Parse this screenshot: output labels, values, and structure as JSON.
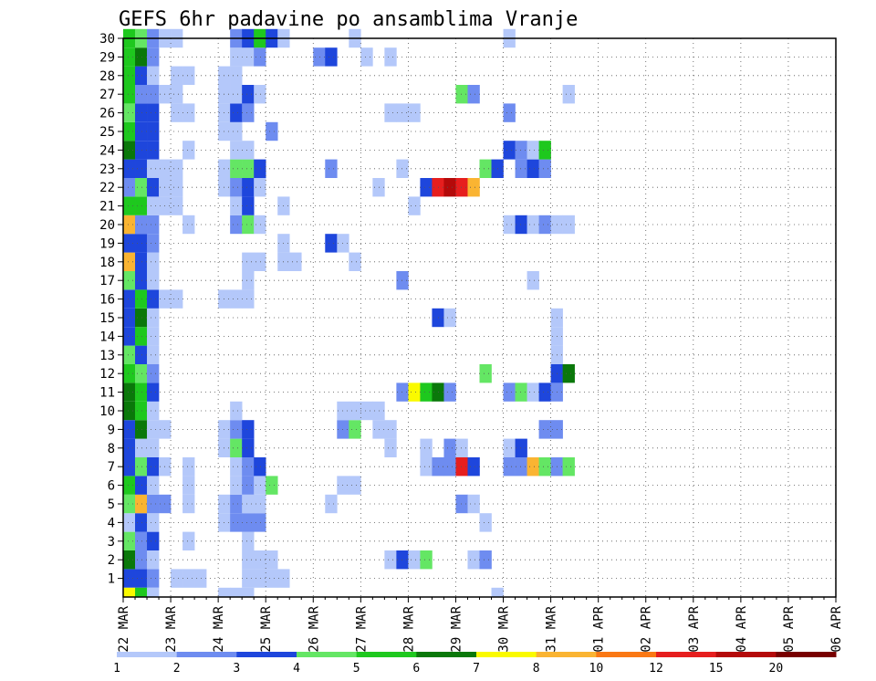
{
  "chart_data": {
    "type": "heatmap",
    "title": "GEFS 6hr padavine po ansamblima Vranje",
    "xlabel": "",
    "ylabel": "",
    "x_ticks": [
      "22 MAR",
      "23 MAR",
      "24 MAR",
      "25 MAR",
      "26 MAR",
      "27 MAR",
      "28 MAR",
      "29 MAR",
      "30 MAR",
      "31 MAR",
      "01 APR",
      "02 APR",
      "03 APR",
      "04 APR",
      "05 APR",
      "06 APR"
    ],
    "y_ticks": [
      "1",
      "2",
      "3",
      "4",
      "5",
      "6",
      "7",
      "8",
      "9",
      "10",
      "11",
      "12",
      "13",
      "14",
      "15",
      "16",
      "17",
      "18",
      "19",
      "20",
      "21",
      "22",
      "23",
      "24",
      "25",
      "26",
      "27",
      "28",
      "29",
      "30"
    ],
    "ylim": [
      0,
      30
    ],
    "legend": {
      "placement": "bottom",
      "labels": [
        "1",
        "2",
        "3",
        "4",
        "5",
        "6",
        "7",
        "8",
        "10",
        "12",
        "15",
        "20"
      ],
      "colors": [
        "#b4c8fa",
        "#6e8cf0",
        "#1e46dc",
        "#64e664",
        "#1ec81e",
        "#0a780a",
        "#fafa00",
        "#fab432",
        "#fa7814",
        "#e61e1e",
        "#b40a0a",
        "#780000"
      ]
    },
    "cell_colors": {
      "1": "#b4c8fa",
      "2": "#6e8cf0",
      "3": "#1e46dc",
      "4": "#64e664",
      "5": "#1ec81e",
      "6": "#0a780a",
      "7": "#fafa00",
      "8": "#fab432",
      "10": "#fa7814",
      "12": "#e61e1e",
      "15": "#b40a0a",
      "20": "#780000"
    },
    "time_step_hours": 6,
    "cells_note": "each cell: [member, time_step, precipitation_class]",
    "cells": [
      [
        1,
        0,
        3
      ],
      [
        1,
        1,
        3
      ],
      [
        1,
        2,
        2
      ],
      [
        1,
        4,
        1
      ],
      [
        1,
        5,
        1
      ],
      [
        1,
        6,
        1
      ],
      [
        1,
        10,
        1
      ],
      [
        1,
        11,
        1
      ],
      [
        1,
        12,
        1
      ],
      [
        1,
        13,
        1
      ],
      [
        2,
        0,
        6
      ],
      [
        2,
        1,
        2
      ],
      [
        2,
        2,
        1
      ],
      [
        2,
        10,
        1
      ],
      [
        2,
        11,
        1
      ],
      [
        2,
        12,
        1
      ],
      [
        2,
        22,
        1
      ],
      [
        2,
        23,
        3
      ],
      [
        2,
        24,
        1
      ],
      [
        2,
        25,
        4
      ],
      [
        2,
        29,
        1
      ],
      [
        2,
        30,
        2
      ],
      [
        3,
        0,
        4
      ],
      [
        3,
        1,
        2
      ],
      [
        3,
        2,
        3
      ],
      [
        3,
        5,
        1
      ],
      [
        3,
        10,
        1
      ],
      [
        4,
        0,
        1
      ],
      [
        4,
        1,
        3
      ],
      [
        4,
        2,
        1
      ],
      [
        4,
        8,
        1
      ],
      [
        4,
        9,
        2
      ],
      [
        4,
        10,
        2
      ],
      [
        4,
        11,
        2
      ],
      [
        4,
        30,
        1
      ],
      [
        5,
        0,
        4
      ],
      [
        5,
        1,
        8
      ],
      [
        5,
        2,
        2
      ],
      [
        5,
        3,
        2
      ],
      [
        5,
        5,
        1
      ],
      [
        5,
        8,
        1
      ],
      [
        5,
        9,
        2
      ],
      [
        5,
        10,
        1
      ],
      [
        5,
        11,
        1
      ],
      [
        5,
        17,
        1
      ],
      [
        5,
        28,
        2
      ],
      [
        5,
        29,
        1
      ],
      [
        6,
        0,
        5
      ],
      [
        6,
        1,
        3
      ],
      [
        6,
        2,
        1
      ],
      [
        6,
        5,
        1
      ],
      [
        6,
        9,
        1
      ],
      [
        6,
        10,
        2
      ],
      [
        6,
        11,
        1
      ],
      [
        6,
        12,
        4
      ],
      [
        6,
        18,
        1
      ],
      [
        6,
        19,
        1
      ],
      [
        7,
        0,
        3
      ],
      [
        7,
        1,
        4
      ],
      [
        7,
        2,
        3
      ],
      [
        7,
        3,
        1
      ],
      [
        7,
        5,
        1
      ],
      [
        7,
        9,
        1
      ],
      [
        7,
        10,
        2
      ],
      [
        7,
        11,
        3
      ],
      [
        7,
        25,
        1
      ],
      [
        7,
        26,
        2
      ],
      [
        7,
        27,
        2
      ],
      [
        7,
        28,
        12
      ],
      [
        7,
        29,
        3
      ],
      [
        7,
        32,
        2
      ],
      [
        7,
        33,
        2
      ],
      [
        7,
        34,
        8
      ],
      [
        7,
        35,
        4
      ],
      [
        7,
        36,
        2
      ],
      [
        7,
        37,
        4
      ],
      [
        8,
        0,
        3
      ],
      [
        8,
        1,
        1
      ],
      [
        8,
        2,
        1
      ],
      [
        8,
        8,
        1
      ],
      [
        8,
        9,
        4
      ],
      [
        8,
        10,
        3
      ],
      [
        8,
        22,
        1
      ],
      [
        8,
        25,
        1
      ],
      [
        8,
        27,
        2
      ],
      [
        8,
        28,
        1
      ],
      [
        8,
        32,
        1
      ],
      [
        8,
        33,
        3
      ],
      [
        9,
        0,
        3
      ],
      [
        9,
        1,
        6
      ],
      [
        9,
        2,
        1
      ],
      [
        9,
        3,
        1
      ],
      [
        9,
        8,
        1
      ],
      [
        9,
        9,
        2
      ],
      [
        9,
        10,
        3
      ],
      [
        9,
        18,
        2
      ],
      [
        9,
        19,
        4
      ],
      [
        9,
        21,
        1
      ],
      [
        9,
        22,
        1
      ],
      [
        9,
        35,
        2
      ],
      [
        9,
        36,
        2
      ],
      [
        10,
        0,
        6
      ],
      [
        10,
        1,
        5
      ],
      [
        10,
        2,
        1
      ],
      [
        10,
        9,
        1
      ],
      [
        10,
        18,
        1
      ],
      [
        10,
        19,
        1
      ],
      [
        10,
        20,
        1
      ],
      [
        10,
        21,
        1
      ],
      [
        11,
        0,
        6
      ],
      [
        11,
        1,
        5
      ],
      [
        11,
        2,
        3
      ],
      [
        11,
        23,
        2
      ],
      [
        11,
        24,
        7
      ],
      [
        11,
        25,
        5
      ],
      [
        11,
        26,
        6
      ],
      [
        11,
        27,
        2
      ],
      [
        11,
        32,
        2
      ],
      [
        11,
        33,
        4
      ],
      [
        11,
        34,
        1
      ],
      [
        11,
        35,
        3
      ],
      [
        11,
        36,
        2
      ],
      [
        12,
        0,
        5
      ],
      [
        12,
        1,
        4
      ],
      [
        12,
        2,
        2
      ],
      [
        12,
        30,
        4
      ],
      [
        12,
        36,
        3
      ],
      [
        12,
        37,
        6
      ],
      [
        13,
        0,
        4
      ],
      [
        13,
        1,
        3
      ],
      [
        13,
        2,
        1
      ],
      [
        13,
        36,
        1
      ],
      [
        14,
        0,
        3
      ],
      [
        14,
        1,
        5
      ],
      [
        14,
        2,
        1
      ],
      [
        14,
        36,
        1
      ],
      [
        15,
        0,
        3
      ],
      [
        15,
        1,
        6
      ],
      [
        15,
        2,
        1
      ],
      [
        15,
        26,
        3
      ],
      [
        15,
        27,
        1
      ],
      [
        15,
        36,
        1
      ],
      [
        16,
        0,
        3
      ],
      [
        16,
        1,
        5
      ],
      [
        16,
        2,
        3
      ],
      [
        16,
        3,
        1
      ],
      [
        16,
        4,
        1
      ],
      [
        16,
        8,
        1
      ],
      [
        16,
        9,
        1
      ],
      [
        16,
        10,
        1
      ],
      [
        17,
        0,
        4
      ],
      [
        17,
        1,
        3
      ],
      [
        17,
        2,
        1
      ],
      [
        17,
        10,
        1
      ],
      [
        17,
        23,
        2
      ],
      [
        17,
        34,
        1
      ],
      [
        18,
        0,
        8
      ],
      [
        18,
        1,
        3
      ],
      [
        18,
        2,
        1
      ],
      [
        18,
        10,
        1
      ],
      [
        18,
        11,
        1
      ],
      [
        18,
        13,
        1
      ],
      [
        18,
        14,
        1
      ],
      [
        18,
        19,
        1
      ],
      [
        19,
        0,
        3
      ],
      [
        19,
        1,
        3
      ],
      [
        19,
        2,
        2
      ],
      [
        19,
        13,
        1
      ],
      [
        19,
        17,
        3
      ],
      [
        19,
        18,
        1
      ],
      [
        20,
        0,
        8
      ],
      [
        20,
        1,
        2
      ],
      [
        20,
        2,
        2
      ],
      [
        20,
        5,
        1
      ],
      [
        20,
        9,
        2
      ],
      [
        20,
        10,
        4
      ],
      [
        20,
        11,
        1
      ],
      [
        20,
        32,
        1
      ],
      [
        20,
        33,
        3
      ],
      [
        20,
        34,
        1
      ],
      [
        20,
        35,
        2
      ],
      [
        20,
        36,
        1
      ],
      [
        20,
        37,
        1
      ],
      [
        21,
        0,
        5
      ],
      [
        21,
        1,
        5
      ],
      [
        21,
        2,
        1
      ],
      [
        21,
        3,
        1
      ],
      [
        21,
        4,
        1
      ],
      [
        21,
        9,
        1
      ],
      [
        21,
        10,
        3
      ],
      [
        21,
        13,
        1
      ],
      [
        21,
        24,
        1
      ],
      [
        22,
        0,
        2
      ],
      [
        22,
        1,
        4
      ],
      [
        22,
        2,
        3
      ],
      [
        22,
        3,
        1
      ],
      [
        22,
        4,
        1
      ],
      [
        22,
        8,
        1
      ],
      [
        22,
        9,
        2
      ],
      [
        22,
        10,
        3
      ],
      [
        22,
        11,
        1
      ],
      [
        22,
        21,
        1
      ],
      [
        22,
        25,
        3
      ],
      [
        22,
        26,
        12
      ],
      [
        22,
        27,
        15
      ],
      [
        22,
        28,
        12
      ],
      [
        22,
        29,
        8
      ],
      [
        23,
        0,
        3
      ],
      [
        23,
        1,
        3
      ],
      [
        23,
        2,
        1
      ],
      [
        23,
        3,
        1
      ],
      [
        23,
        4,
        1
      ],
      [
        23,
        8,
        1
      ],
      [
        23,
        9,
        4
      ],
      [
        23,
        10,
        4
      ],
      [
        23,
        11,
        3
      ],
      [
        23,
        17,
        2
      ],
      [
        23,
        23,
        1
      ],
      [
        23,
        30,
        4
      ],
      [
        23,
        31,
        3
      ],
      [
        23,
        33,
        2
      ],
      [
        23,
        34,
        3
      ],
      [
        23,
        35,
        2
      ],
      [
        24,
        0,
        6
      ],
      [
        24,
        1,
        3
      ],
      [
        24,
        2,
        3
      ],
      [
        24,
        5,
        1
      ],
      [
        24,
        9,
        1
      ],
      [
        24,
        10,
        1
      ],
      [
        24,
        32,
        3
      ],
      [
        24,
        33,
        2
      ],
      [
        24,
        34,
        1
      ],
      [
        24,
        35,
        5
      ],
      [
        25,
        0,
        5
      ],
      [
        25,
        1,
        3
      ],
      [
        25,
        2,
        3
      ],
      [
        25,
        8,
        1
      ],
      [
        25,
        9,
        1
      ],
      [
        25,
        12,
        2
      ],
      [
        26,
        0,
        4
      ],
      [
        26,
        1,
        3
      ],
      [
        26,
        2,
        3
      ],
      [
        26,
        4,
        1
      ],
      [
        26,
        5,
        1
      ],
      [
        26,
        8,
        1
      ],
      [
        26,
        9,
        3
      ],
      [
        26,
        10,
        2
      ],
      [
        26,
        22,
        1
      ],
      [
        26,
        23,
        1
      ],
      [
        26,
        24,
        1
      ],
      [
        26,
        32,
        2
      ],
      [
        27,
        0,
        5
      ],
      [
        27,
        1,
        2
      ],
      [
        27,
        2,
        2
      ],
      [
        27,
        3,
        1
      ],
      [
        27,
        4,
        1
      ],
      [
        27,
        8,
        1
      ],
      [
        27,
        9,
        1
      ],
      [
        27,
        10,
        3
      ],
      [
        27,
        11,
        1
      ],
      [
        27,
        28,
        4
      ],
      [
        27,
        29,
        2
      ],
      [
        27,
        37,
        1
      ],
      [
        28,
        0,
        5
      ],
      [
        28,
        1,
        3
      ],
      [
        28,
        2,
        1
      ],
      [
        28,
        4,
        1
      ],
      [
        28,
        5,
        1
      ],
      [
        28,
        8,
        1
      ],
      [
        28,
        9,
        1
      ],
      [
        29,
        0,
        5
      ],
      [
        29,
        1,
        6
      ],
      [
        29,
        2,
        2
      ],
      [
        29,
        9,
        1
      ],
      [
        29,
        10,
        1
      ],
      [
        29,
        11,
        2
      ],
      [
        29,
        16,
        2
      ],
      [
        29,
        17,
        3
      ],
      [
        29,
        20,
        1
      ],
      [
        29,
        22,
        1
      ],
      [
        30,
        0,
        5
      ],
      [
        30,
        1,
        4
      ],
      [
        30,
        2,
        2
      ],
      [
        30,
        3,
        1
      ],
      [
        30,
        4,
        1
      ],
      [
        30,
        9,
        2
      ],
      [
        30,
        10,
        3
      ],
      [
        30,
        11,
        5
      ],
      [
        30,
        12,
        3
      ],
      [
        30,
        13,
        1
      ],
      [
        30,
        19,
        1
      ],
      [
        30,
        32,
        1
      ],
      [
        0,
        0,
        7
      ],
      [
        0,
        1,
        5
      ],
      [
        0,
        2,
        1
      ],
      [
        0,
        8,
        1
      ],
      [
        0,
        9,
        1
      ],
      [
        0,
        10,
        1
      ],
      [
        0,
        31,
        1
      ]
    ]
  }
}
